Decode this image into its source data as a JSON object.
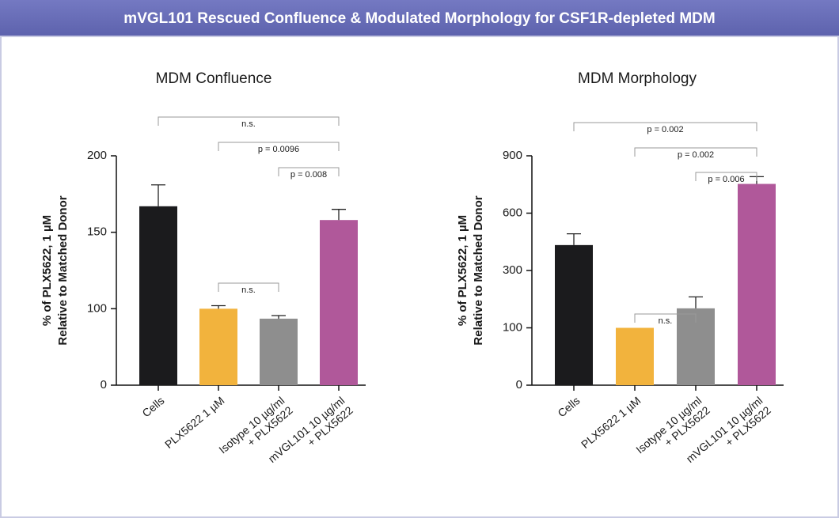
{
  "header": {
    "title": "mVGL101 Rescued Confluence & Modulated Morphology for CSF1R-depleted MDM"
  },
  "chart_data": [
    {
      "type": "bar",
      "title": "MDM Confluence",
      "ylabel": [
        "% of PLX5622, 1 µM",
        "Relative to Matched Donor"
      ],
      "categories": [
        [
          "Cells"
        ],
        [
          "PLX5622 1 µM"
        ],
        [
          "Isotype 10 µg/ml",
          "+ PLX5622"
        ],
        [
          "mVGL101 10 µg/ml",
          "+ PLX5622"
        ]
      ],
      "values": [
        167,
        100,
        87,
        158
      ],
      "errors": [
        14,
        2,
        4,
        7
      ],
      "colors": [
        "#1b1b1d",
        "#f2b33d",
        "#8e8e8e",
        "#b0589a"
      ],
      "ylim": [
        0,
        200
      ],
      "yticks": [
        0,
        100,
        150,
        200
      ],
      "brackets": [
        {
          "from": 0,
          "to": 3,
          "label": "n.s."
        },
        {
          "from": 1,
          "to": 3,
          "label": "p = 0.0096"
        },
        {
          "from": 2,
          "to": 3,
          "label": "p = 0.008"
        },
        {
          "from": 1,
          "to": 2,
          "label": "n.s."
        }
      ]
    },
    {
      "type": "bar",
      "title": "MDM Morphology",
      "ylabel": [
        "% of PLX5622, 1 µM",
        "Relative to Matched Donor"
      ],
      "categories": [
        [
          "Cells"
        ],
        [
          "PLX5622 1 µM"
        ],
        [
          "Isotype 10 µg/ml",
          "+ PLX5622"
        ],
        [
          "mVGL101 10 µg/ml",
          "+ PLX5622"
        ]
      ],
      "values": [
        433,
        100,
        168,
        753
      ],
      "errors": [
        59,
        null,
        40,
        38
      ],
      "colors": [
        "#1b1b1d",
        "#f2b33d",
        "#8e8e8e",
        "#b0589a"
      ],
      "ylim": [
        0,
        900
      ],
      "yticks": [
        0,
        100,
        300,
        600,
        900
      ],
      "brackets": [
        {
          "from": 0,
          "to": 3,
          "label": "p = 0.002"
        },
        {
          "from": 1,
          "to": 3,
          "label": "p = 0.002"
        },
        {
          "from": 2,
          "to": 3,
          "label": "p = 0.006"
        },
        {
          "from": 1,
          "to": 2,
          "label": "n.s."
        }
      ]
    }
  ]
}
